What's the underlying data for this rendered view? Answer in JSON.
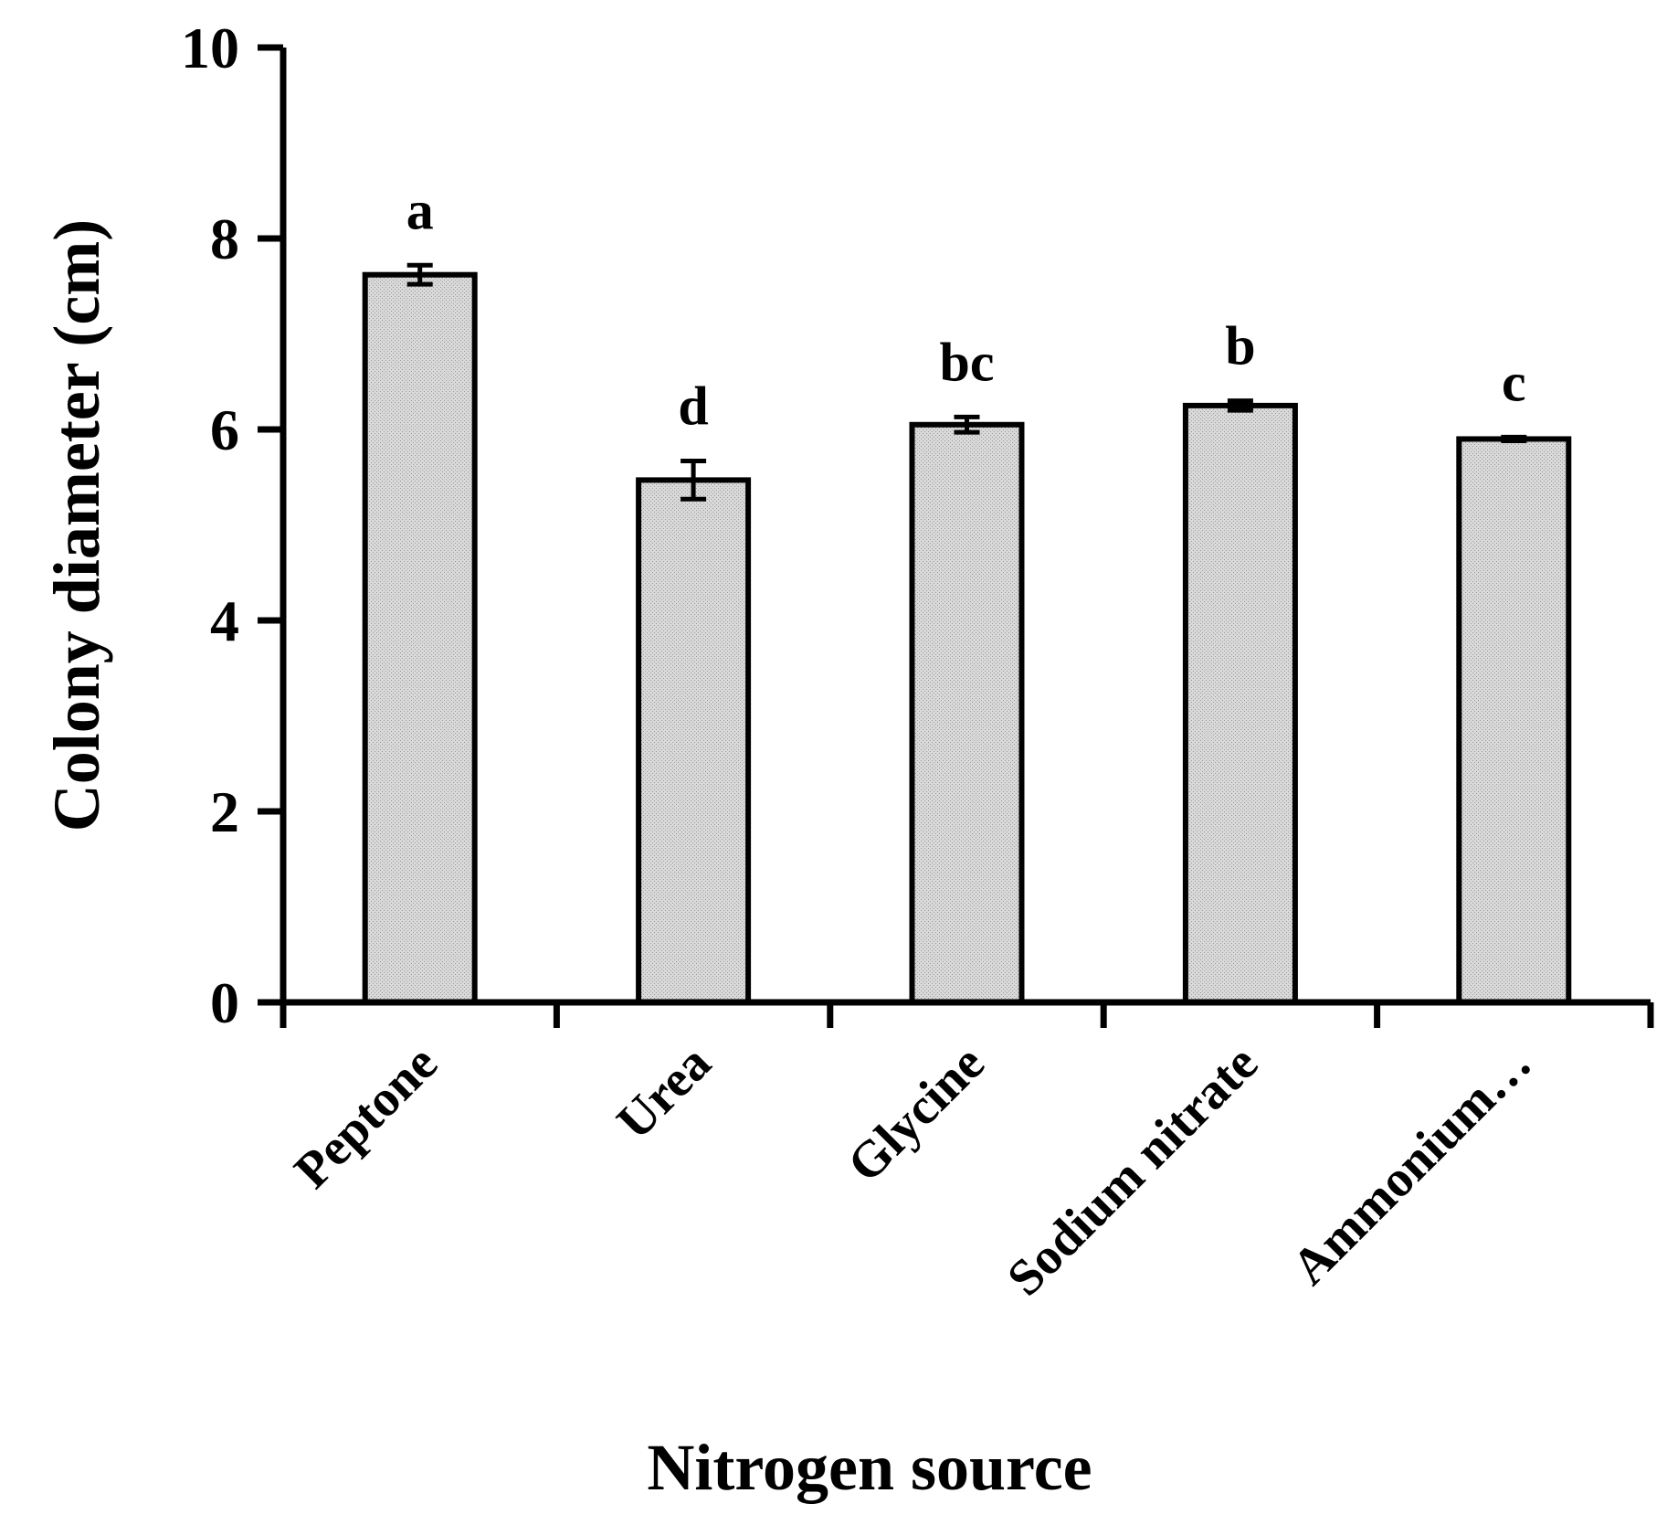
{
  "chart_data": {
    "type": "bar",
    "xlabel": "Nitrogen source",
    "ylabel": "Colony diameter (cm)",
    "categories": [
      "Peptone",
      "Urea",
      "Glycine",
      "Sodium nitrate",
      "Ammonium…"
    ],
    "values": [
      7.62,
      5.47,
      6.05,
      6.25,
      5.9
    ],
    "errors": [
      0.1,
      0.2,
      0.08,
      0.05,
      0.02
    ],
    "significance": [
      "a",
      "d",
      "bc",
      "b",
      "c"
    ],
    "ylim": [
      0,
      10
    ],
    "yticks": [
      0,
      2,
      4,
      6,
      8,
      10
    ],
    "grid": false,
    "legend": "none",
    "bar_fill": "#d6d6d6",
    "bar_stroke": "#000000"
  }
}
